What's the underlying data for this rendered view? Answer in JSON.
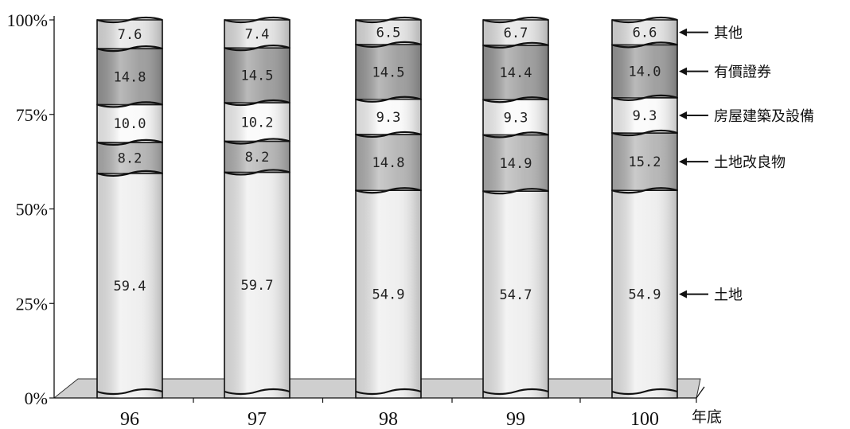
{
  "chart_data": {
    "type": "bar",
    "stacked": true,
    "percent_stacked": true,
    "categories": [
      "96",
      "97",
      "98",
      "99",
      "100"
    ],
    "x_unit_label": "年底",
    "y_ticks": [
      "0%",
      "25%",
      "50%",
      "75%",
      "100%"
    ],
    "ylim": [
      0,
      100
    ],
    "series": [
      {
        "name": "土地",
        "values": [
          59.4,
          59.7,
          54.9,
          54.7,
          54.9
        ],
        "labels": [
          "59.4",
          "59.7",
          "54.9",
          "54.7",
          "54.9"
        ],
        "color": "#eeeeee"
      },
      {
        "name": "土地改良物",
        "values": [
          8.2,
          8.2,
          14.8,
          14.9,
          15.2
        ],
        "labels": [
          "8.2",
          "8.2",
          "14.8",
          "14.9",
          "15.2"
        ],
        "color": "#b4b4b4"
      },
      {
        "name": "房屋建築及設備",
        "values": [
          10.0,
          10.2,
          9.3,
          9.3,
          9.3
        ],
        "labels": [
          "10.0",
          "10.2",
          "9.3",
          "9.3",
          "9.3"
        ],
        "color": "#fafafa"
      },
      {
        "name": "有價證券",
        "values": [
          14.8,
          14.5,
          14.5,
          14.4,
          14.0
        ],
        "labels": [
          "14.8",
          "14.5",
          "14.5",
          "14.4",
          "14.0"
        ],
        "color": "#9c9c9c"
      },
      {
        "name": "其他",
        "values": [
          7.6,
          7.4,
          6.5,
          6.7,
          6.6
        ],
        "labels": [
          "7.6",
          "7.4",
          "6.5",
          "6.7",
          "6.6"
        ],
        "color": "#e4e4e4"
      }
    ],
    "legend_placement": "right",
    "grid": false,
    "floor_color": "#cfcfcf"
  }
}
